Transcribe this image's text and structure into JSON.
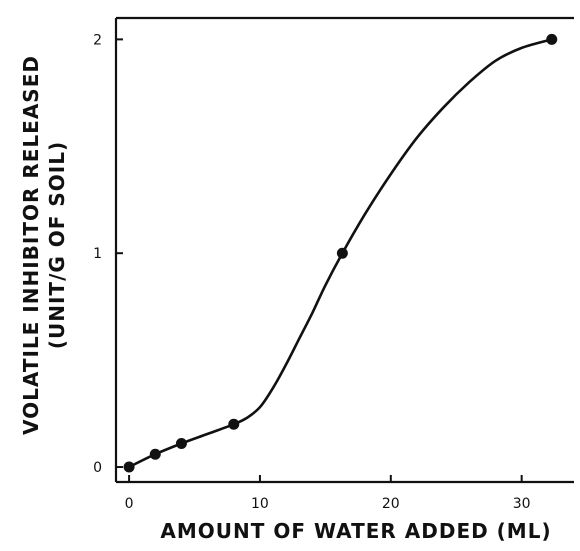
{
  "chart_data": {
    "type": "line",
    "title": "",
    "xlabel": "AMOUNT OF WATER ADDED (ML)",
    "ylabel_line1": "VOLATILE INHIBITOR RELEASED",
    "ylabel_line2": "(UNIT/G OF SOIL)",
    "xlim": [
      -1,
      34
    ],
    "ylim": [
      -0.07,
      2.1
    ],
    "xticks": [
      0,
      10,
      20,
      30
    ],
    "xtick_labels": [
      "0",
      "10",
      "20",
      "30"
    ],
    "yticks": [
      0,
      1,
      2
    ],
    "ytick_labels": [
      "0",
      "1",
      "2"
    ],
    "grid": false,
    "legend": "none",
    "series": [
      {
        "points": [
          {
            "x": 0,
            "y": 0
          },
          {
            "x": 2,
            "y": 0.06
          },
          {
            "x": 4,
            "y": 0.11
          },
          {
            "x": 8,
            "y": 0.2
          },
          {
            "x": 16.3,
            "y": 1.0
          },
          {
            "x": 32.3,
            "y": 2.0
          }
        ],
        "curve": [
          [
            0,
            0
          ],
          [
            2,
            0.06
          ],
          [
            4,
            0.11
          ],
          [
            6,
            0.155
          ],
          [
            8,
            0.2
          ],
          [
            9,
            0.23
          ],
          [
            10,
            0.28
          ],
          [
            11,
            0.37
          ],
          [
            12,
            0.48
          ],
          [
            13,
            0.6
          ],
          [
            14,
            0.72
          ],
          [
            15,
            0.85
          ],
          [
            16.3,
            1.0
          ],
          [
            18,
            1.18
          ],
          [
            20,
            1.37
          ],
          [
            22,
            1.54
          ],
          [
            24,
            1.68
          ],
          [
            26,
            1.8
          ],
          [
            28,
            1.9
          ],
          [
            30,
            1.96
          ],
          [
            32.3,
            2.0
          ]
        ]
      }
    ]
  }
}
